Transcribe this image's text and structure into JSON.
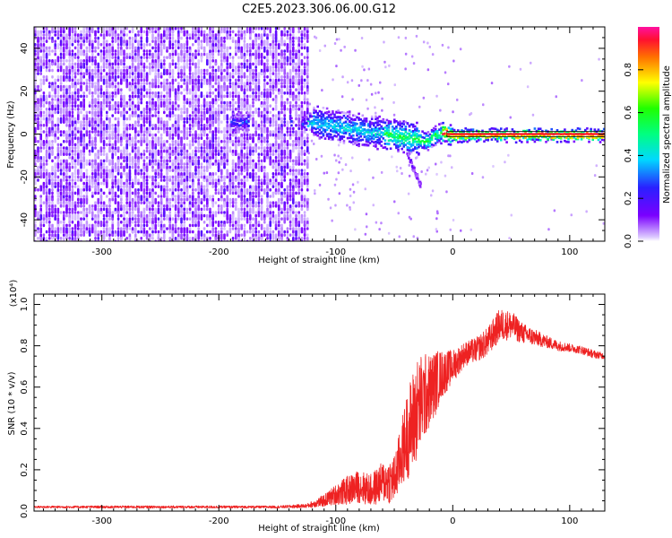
{
  "figure": {
    "title": "C2E5.2023.306.06.00.G12"
  },
  "chart_data": [
    {
      "type": "heatmap",
      "xlabel": "Height of straight line (km)",
      "ylabel": "Frequency (Hz)",
      "xlim": [
        -358,
        130
      ],
      "ylim": [
        -50,
        50
      ],
      "x_ticks": [
        "-300",
        "-200",
        "-100",
        "0",
        "100"
      ],
      "y_ticks": [
        "-40",
        "-20",
        "0",
        "20",
        "40"
      ],
      "colorbar": {
        "label": "Normalized spectral amplitude",
        "range": [
          0,
          1
        ],
        "ticks": [
          "0.0",
          "0.2",
          "0.4",
          "0.6",
          "0.8"
        ]
      },
      "features": {
        "noise_region_x": [
          -358,
          -125
        ],
        "ridge_x": [
          -190,
          130
        ],
        "ridge_frequency_hz": 0
      }
    },
    {
      "type": "line",
      "xlabel": "Height of straight line (km)",
      "ylabel": "SNR (10 * v/v)",
      "y_multiplier": "(x10⁴)",
      "xlim": [
        -358,
        130
      ],
      "ylim": [
        0,
        1.05
      ],
      "x_ticks": [
        "-300",
        "-200",
        "-100",
        "0",
        "100"
      ],
      "y_ticks": [
        "0.0",
        "0.2",
        "0.4",
        "0.6",
        "0.8",
        "1.0"
      ],
      "series": [
        {
          "color": "#ee2222",
          "x": [
            -358,
            -300,
            -200,
            -150,
            -125,
            -110,
            -100,
            -90,
            -80,
            -70,
            -60,
            -50,
            -45,
            -40,
            -35,
            -30,
            -25,
            -20,
            -15,
            -10,
            -5,
            0,
            5,
            10,
            20,
            30,
            40,
            50,
            60,
            70,
            80,
            90,
            100,
            110,
            120,
            130
          ],
          "y": [
            0.02,
            0.02,
            0.02,
            0.02,
            0.025,
            0.05,
            0.08,
            0.1,
            0.12,
            0.1,
            0.14,
            0.15,
            0.25,
            0.35,
            0.42,
            0.5,
            0.55,
            0.58,
            0.62,
            0.66,
            0.68,
            0.7,
            0.73,
            0.76,
            0.78,
            0.82,
            0.9,
            0.9,
            0.86,
            0.84,
            0.82,
            0.8,
            0.79,
            0.78,
            0.76,
            0.75
          ],
          "noise": [
            0.005,
            0.006,
            0.006,
            0.006,
            0.01,
            0.03,
            0.05,
            0.07,
            0.08,
            0.08,
            0.1,
            0.12,
            0.15,
            0.2,
            0.25,
            0.25,
            0.22,
            0.18,
            0.16,
            0.12,
            0.1,
            0.08,
            0.07,
            0.06,
            0.06,
            0.07,
            0.08,
            0.07,
            0.05,
            0.04,
            0.03,
            0.025,
            0.02,
            0.02,
            0.02,
            0.015
          ]
        }
      ]
    }
  ]
}
